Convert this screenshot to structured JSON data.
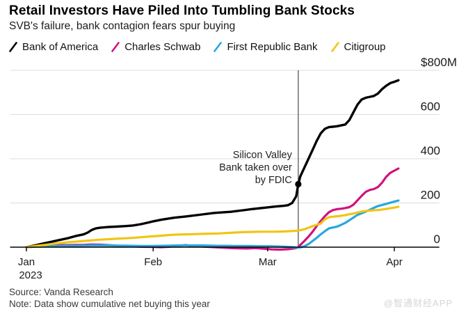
{
  "header": {
    "title": "Retail Investors Have Piled Into Tumbling Bank Stocks",
    "subtitle": "SVB's failure, bank contagion fears spur buying"
  },
  "legend": [
    {
      "label": "Bank of America",
      "color": "#000000"
    },
    {
      "label": "Charles Schwab",
      "color": "#d0127e"
    },
    {
      "label": "First Republic Bank",
      "color": "#26a8df"
    },
    {
      "label": "Citigroup",
      "color": "#f0c514"
    }
  ],
  "chart_data": {
    "type": "line",
    "title": "Retail Investors Have Piled Into Tumbling Bank Stocks",
    "subtitle": "SVB's failure, bank contagion fears spur buying",
    "x_unit": "days since Jan 1, 2023",
    "xlim_days": [
      -4,
      101
    ],
    "ylim": [
      0,
      800
    ],
    "grid": true,
    "y_axis_side": "right",
    "x_ticks": [
      {
        "day": 0,
        "label": "Jan",
        "sublabel": "2023"
      },
      {
        "day": 31,
        "label": "Feb"
      },
      {
        "day": 59,
        "label": "Mar"
      },
      {
        "day": 90,
        "label": "Apr"
      }
    ],
    "y_ticks": [
      {
        "value": 800,
        "label": "$800M"
      },
      {
        "value": 600,
        "label": "600"
      },
      {
        "value": 400,
        "label": "400"
      },
      {
        "value": 200,
        "label": "200"
      },
      {
        "value": 0,
        "label": "0"
      }
    ],
    "annotation": {
      "text_lines": [
        "Silicon Valley",
        "Bank taken over",
        "by FDIC"
      ],
      "rule_day": 66.5,
      "dot": {
        "series": "Bank of America",
        "day": 66.5,
        "value": 285
      }
    },
    "series": [
      {
        "name": "Bank of America",
        "color": "#000000",
        "width": 3.4,
        "points": [
          [
            0,
            0
          ],
          [
            2,
            8
          ],
          [
            4,
            16
          ],
          [
            6,
            24
          ],
          [
            8,
            32
          ],
          [
            10,
            40
          ],
          [
            12,
            50
          ],
          [
            14,
            58
          ],
          [
            15,
            66
          ],
          [
            16,
            78
          ],
          [
            17,
            85
          ],
          [
            18,
            88
          ],
          [
            20,
            91
          ],
          [
            22,
            93
          ],
          [
            24,
            95
          ],
          [
            26,
            98
          ],
          [
            28,
            104
          ],
          [
            30,
            112
          ],
          [
            31,
            117
          ],
          [
            33,
            124
          ],
          [
            36,
            133
          ],
          [
            39,
            139
          ],
          [
            43,
            148
          ],
          [
            46,
            155
          ],
          [
            50,
            160
          ],
          [
            53,
            167
          ],
          [
            55,
            172
          ],
          [
            58,
            178
          ],
          [
            61,
            184
          ],
          [
            63,
            187
          ],
          [
            64,
            190
          ],
          [
            65,
            200
          ],
          [
            66,
            230
          ],
          [
            66.5,
            285
          ],
          [
            67,
            320
          ],
          [
            68,
            360
          ],
          [
            69,
            400
          ],
          [
            70,
            440
          ],
          [
            71,
            480
          ],
          [
            72,
            515
          ],
          [
            73,
            535
          ],
          [
            74,
            543
          ],
          [
            75,
            545
          ],
          [
            76,
            547
          ],
          [
            78,
            555
          ],
          [
            79,
            575
          ],
          [
            80,
            610
          ],
          [
            81,
            645
          ],
          [
            82,
            668
          ],
          [
            83,
            676
          ],
          [
            84,
            680
          ],
          [
            85,
            684
          ],
          [
            86,
            695
          ],
          [
            87,
            715
          ],
          [
            88,
            730
          ],
          [
            89,
            742
          ],
          [
            90,
            748
          ],
          [
            91,
            755
          ]
        ]
      },
      {
        "name": "Charles Schwab",
        "color": "#d0127e",
        "width": 3.2,
        "points": [
          [
            0,
            0
          ],
          [
            2,
            4
          ],
          [
            4,
            6
          ],
          [
            6,
            8
          ],
          [
            8,
            9
          ],
          [
            10,
            9
          ],
          [
            12,
            10
          ],
          [
            14,
            10
          ],
          [
            16,
            12
          ],
          [
            18,
            11
          ],
          [
            20,
            9
          ],
          [
            22,
            7
          ],
          [
            24,
            5
          ],
          [
            26,
            4
          ],
          [
            28,
            2
          ],
          [
            31,
            1
          ],
          [
            33,
            0
          ],
          [
            35,
            2
          ],
          [
            37,
            6
          ],
          [
            39,
            9
          ],
          [
            40,
            6
          ],
          [
            42,
            4
          ],
          [
            44,
            2
          ],
          [
            46,
            0
          ],
          [
            48,
            -2
          ],
          [
            50,
            -4
          ],
          [
            52,
            -5
          ],
          [
            54,
            -6
          ],
          [
            56,
            -4
          ],
          [
            58,
            -7
          ],
          [
            60,
            -10
          ],
          [
            62,
            -11
          ],
          [
            64,
            -9
          ],
          [
            65,
            -7
          ],
          [
            66,
            -4
          ],
          [
            66.5,
            0
          ],
          [
            67,
            10
          ],
          [
            68,
            28
          ],
          [
            69,
            48
          ],
          [
            70,
            70
          ],
          [
            71,
            95
          ],
          [
            72,
            118
          ],
          [
            73,
            140
          ],
          [
            74,
            158
          ],
          [
            75,
            168
          ],
          [
            76,
            172
          ],
          [
            77,
            174
          ],
          [
            78,
            177
          ],
          [
            79,
            181
          ],
          [
            80,
            192
          ],
          [
            81,
            212
          ],
          [
            82,
            232
          ],
          [
            83,
            250
          ],
          [
            84,
            259
          ],
          [
            85,
            263
          ],
          [
            86,
            272
          ],
          [
            87,
            292
          ],
          [
            88,
            318
          ],
          [
            89,
            336
          ],
          [
            90,
            346
          ],
          [
            91,
            356
          ]
        ]
      },
      {
        "name": "First Republic Bank",
        "color": "#26a8df",
        "width": 3.2,
        "points": [
          [
            0,
            0
          ],
          [
            2,
            2
          ],
          [
            4,
            3
          ],
          [
            6,
            4
          ],
          [
            8,
            5
          ],
          [
            10,
            6
          ],
          [
            12,
            6
          ],
          [
            14,
            7
          ],
          [
            16,
            8
          ],
          [
            18,
            8
          ],
          [
            20,
            8
          ],
          [
            22,
            7
          ],
          [
            24,
            7
          ],
          [
            26,
            6
          ],
          [
            28,
            5
          ],
          [
            31,
            5
          ],
          [
            33,
            6
          ],
          [
            35,
            7
          ],
          [
            37,
            8
          ],
          [
            39,
            8
          ],
          [
            41,
            8
          ],
          [
            43,
            8
          ],
          [
            45,
            7
          ],
          [
            47,
            6
          ],
          [
            49,
            6
          ],
          [
            51,
            5
          ],
          [
            53,
            5
          ],
          [
            55,
            5
          ],
          [
            57,
            4
          ],
          [
            59,
            4
          ],
          [
            61,
            3
          ],
          [
            63,
            2
          ],
          [
            64,
            1
          ],
          [
            65,
            0
          ],
          [
            66,
            -2
          ],
          [
            67,
            -1
          ],
          [
            68,
            4
          ],
          [
            69,
            14
          ],
          [
            70,
            28
          ],
          [
            71,
            42
          ],
          [
            72,
            58
          ],
          [
            73,
            72
          ],
          [
            74,
            85
          ],
          [
            75,
            89
          ],
          [
            76,
            93
          ],
          [
            77,
            101
          ],
          [
            78,
            110
          ],
          [
            79,
            122
          ],
          [
            80,
            134
          ],
          [
            81,
            146
          ],
          [
            82,
            153
          ],
          [
            83,
            161
          ],
          [
            84,
            169
          ],
          [
            85,
            178
          ],
          [
            86,
            186
          ],
          [
            87,
            191
          ],
          [
            88,
            196
          ],
          [
            89,
            201
          ],
          [
            90,
            206
          ],
          [
            91,
            211
          ]
        ]
      },
      {
        "name": "Citigroup",
        "color": "#f0c514",
        "width": 3.2,
        "points": [
          [
            0,
            0
          ],
          [
            2,
            5
          ],
          [
            4,
            9
          ],
          [
            6,
            14
          ],
          [
            8,
            18
          ],
          [
            10,
            22
          ],
          [
            12,
            25
          ],
          [
            14,
            28
          ],
          [
            16,
            31
          ],
          [
            18,
            34
          ],
          [
            20,
            36
          ],
          [
            22,
            38
          ],
          [
            24,
            40
          ],
          [
            26,
            42
          ],
          [
            28,
            45
          ],
          [
            31,
            49
          ],
          [
            33,
            52
          ],
          [
            35,
            55
          ],
          [
            37,
            57
          ],
          [
            39,
            58
          ],
          [
            41,
            59
          ],
          [
            43,
            60
          ],
          [
            45,
            61
          ],
          [
            47,
            62
          ],
          [
            49,
            64
          ],
          [
            51,
            66
          ],
          [
            53,
            68
          ],
          [
            55,
            69
          ],
          [
            57,
            70
          ],
          [
            59,
            70
          ],
          [
            61,
            70
          ],
          [
            63,
            71
          ],
          [
            64,
            72
          ],
          [
            65,
            73
          ],
          [
            66,
            74
          ],
          [
            67,
            77
          ],
          [
            68,
            81
          ],
          [
            69,
            88
          ],
          [
            70,
            95
          ],
          [
            71,
            101
          ],
          [
            72,
            107
          ],
          [
            73,
            126
          ],
          [
            74,
            135
          ],
          [
            75,
            138
          ],
          [
            76,
            140
          ],
          [
            77,
            142
          ],
          [
            78,
            145
          ],
          [
            79,
            149
          ],
          [
            80,
            152
          ],
          [
            81,
            157
          ],
          [
            82,
            161
          ],
          [
            83,
            164
          ],
          [
            84,
            165
          ],
          [
            85,
            167
          ],
          [
            86,
            168
          ],
          [
            87,
            170
          ],
          [
            88,
            173
          ],
          [
            89,
            176
          ],
          [
            90,
            179
          ],
          [
            91,
            183
          ]
        ]
      }
    ],
    "colors": {
      "grid": "#dcdcdc",
      "axis": "#000000",
      "rule": "#4a4a4a",
      "tick_label": "#1a1a1a",
      "annotation_text": "#222222"
    }
  },
  "footer": {
    "source": "Source: Vanda Research",
    "note": "Note: Data show cumulative net buying this year"
  },
  "watermark": "@智通财经APP"
}
